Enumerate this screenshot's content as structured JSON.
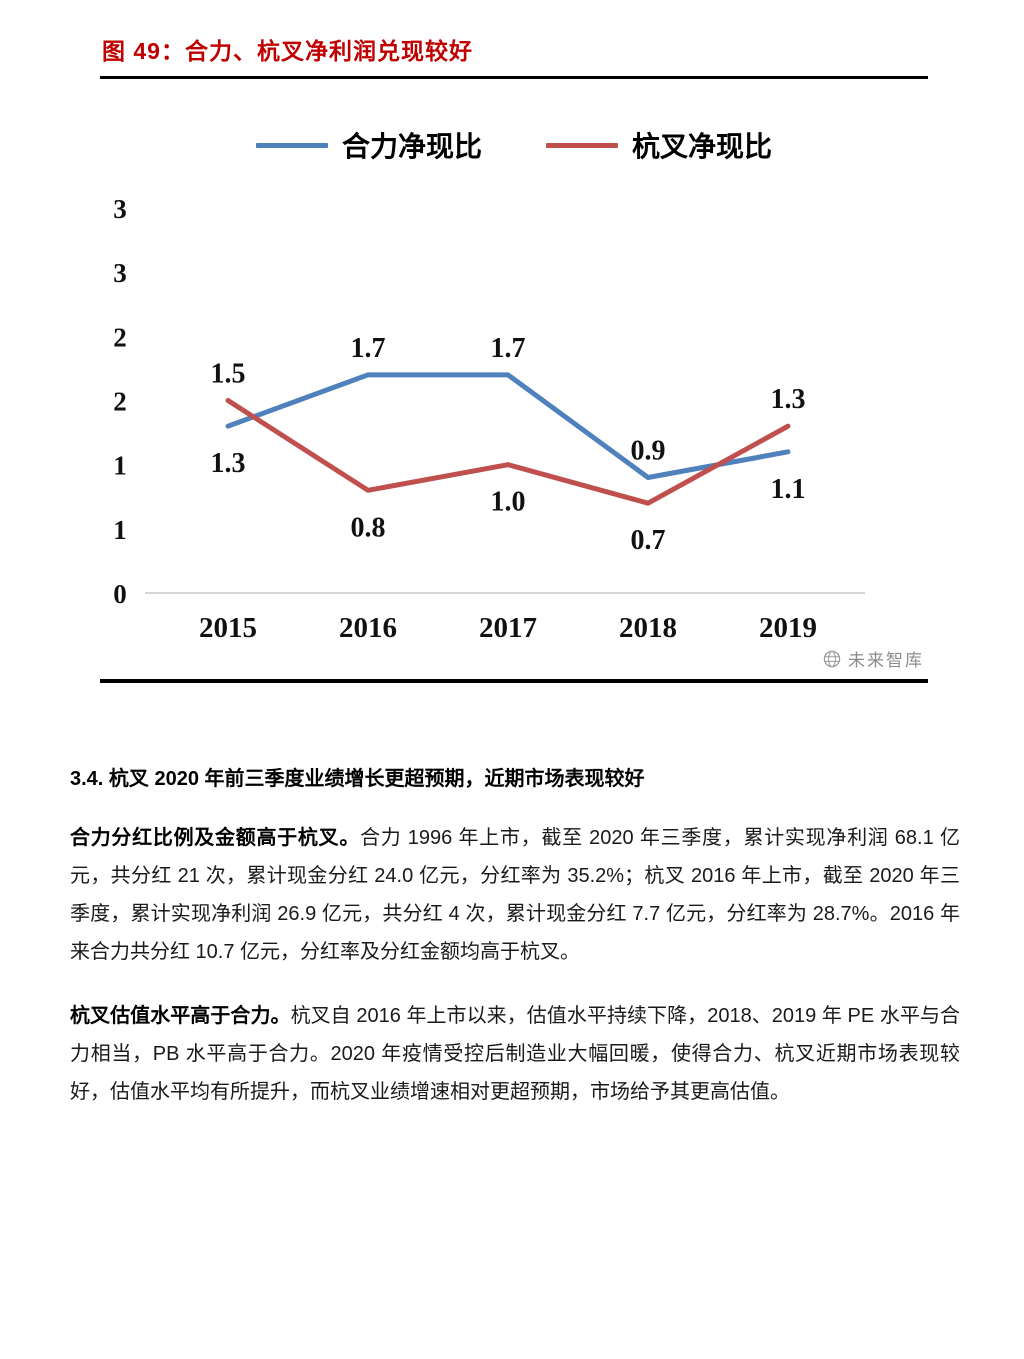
{
  "figure": {
    "title": "图 49：合力、杭叉净利润兑现较好",
    "watermark": "未来智库"
  },
  "colors": {
    "figure_title": "#c00000",
    "series_heli": "#4f81bd",
    "series_hangcha": "#c0504d",
    "axis_line": "#c9c9c9",
    "watermark": "#8c8c8c"
  },
  "chart_data": {
    "type": "line",
    "title": "合力、杭叉净利润兑现较好",
    "categories": [
      "2015",
      "2016",
      "2017",
      "2018",
      "2019"
    ],
    "series": [
      {
        "name": "合力净现比",
        "color": "#4f81bd",
        "values": [
          1.3,
          1.7,
          1.7,
          0.9,
          1.1
        ]
      },
      {
        "name": "杭叉净现比",
        "color": "#c0504d",
        "values": [
          1.5,
          0.8,
          1.0,
          0.7,
          1.3
        ]
      }
    ],
    "xlabel": "",
    "ylabel": "",
    "ylim": [
      0,
      3
    ],
    "ytick_labels": [
      "3",
      "3",
      "2",
      "2",
      "1",
      "1",
      "0"
    ],
    "grid": false,
    "legend_position": "top",
    "data_labels": true
  },
  "section": {
    "heading": "3.4. 杭叉 2020 年前三季度业绩增长更超预期，近期市场表现较好",
    "paragraphs": [
      {
        "lead": "合力分红比例及金额高于杭叉。",
        "text": "合力 1996 年上市，截至 2020 年三季度，累计实现净利润 68.1 亿元，共分红 21 次，累计现金分红 24.0 亿元，分红率为 35.2%；杭叉 2016 年上市，截至 2020 年三季度，累计实现净利润 26.9 亿元，共分红 4 次，累计现金分红 7.7 亿元，分红率为 28.7%。2016 年来合力共分红 10.7 亿元，分红率及分红金额均高于杭叉。"
      },
      {
        "lead": "杭叉估值水平高于合力。",
        "text": "杭叉自 2016 年上市以来，估值水平持续下降，2018、2019 年 PE 水平与合力相当，PB 水平高于合力。2020 年疫情受控后制造业大幅回暖，使得合力、杭叉近期市场表现较好，估值水平均有所提升，而杭叉业绩增速相对更超预期，市场给予其更高估值。"
      }
    ]
  }
}
